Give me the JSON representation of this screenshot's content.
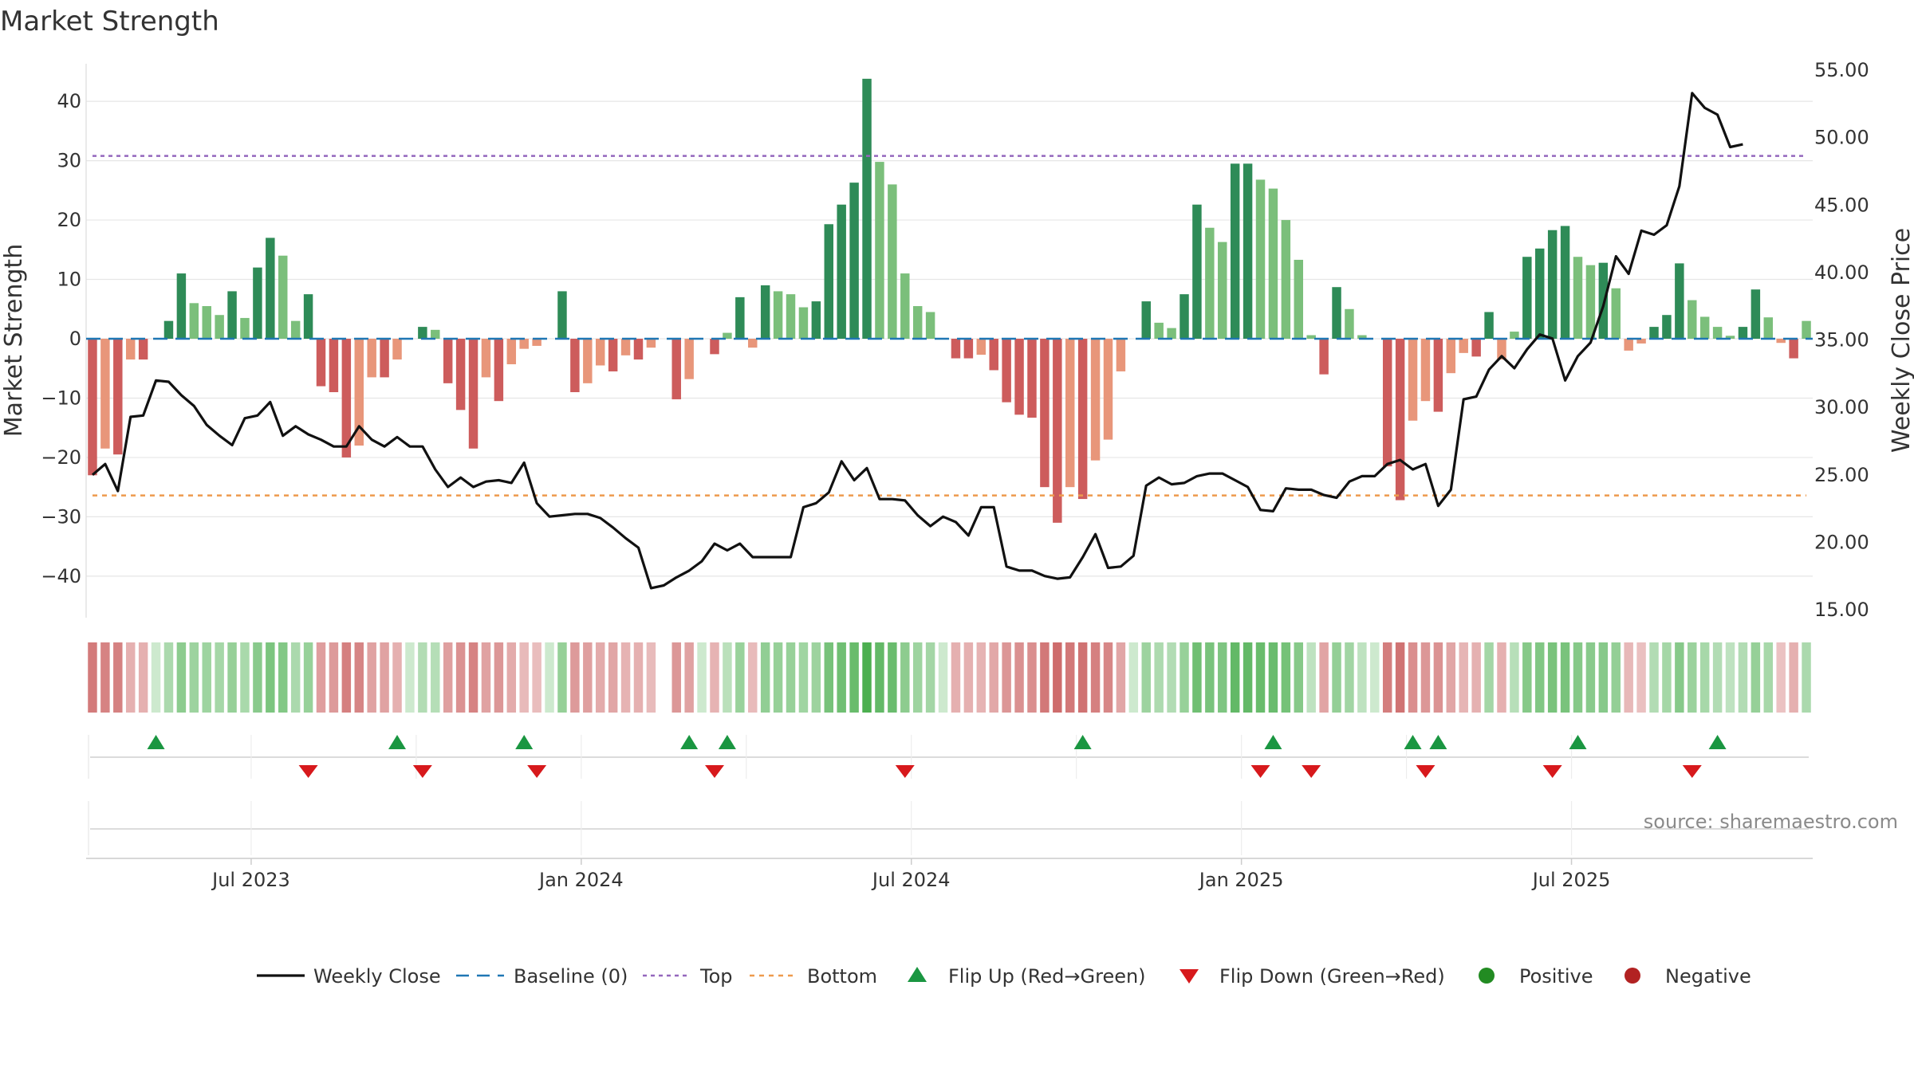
{
  "chart_data": {
    "type": "bar",
    "title": "Market Strength",
    "y_left_label": "Market Strength",
    "y_right_label": "Weekly Close Price",
    "y_left_range": [
      -47,
      47
    ],
    "y_right_range": [
      15,
      55
    ],
    "y_left_ticks": [
      40,
      30,
      20,
      10,
      0,
      -10,
      -20,
      -30,
      -40
    ],
    "y_left_tick_labels": [
      "40",
      "30",
      "20",
      "10",
      "0",
      "−10",
      "−20",
      "−30",
      "−40"
    ],
    "y_right_ticks": [
      55,
      50,
      45,
      40,
      35,
      30,
      25,
      20,
      15
    ],
    "y_right_tick_labels": [
      "55.00",
      "50.00",
      "45.00",
      "40.00",
      "35.00",
      "30.00",
      "25.00",
      "20.00",
      "15.00"
    ],
    "x_tick_weeks": [
      13,
      39,
      65,
      91,
      117
    ],
    "x_tick_labels": [
      "Jul 2023",
      "Jan 2024",
      "Jul 2024",
      "Jan 2025",
      "Jul 2025"
    ],
    "top_level": 30.8,
    "bottom_level": -26.4,
    "strength": [
      -23,
      -18.5,
      -19.5,
      -3.5,
      -3.5,
      0,
      3,
      11,
      6,
      5.5,
      4,
      8,
      3.5,
      12,
      17,
      14,
      3,
      7.5,
      -8,
      -9,
      -20,
      -18,
      -6.5,
      -6.5,
      -3.5,
      0,
      2,
      1.5,
      -7.5,
      -12,
      -18.5,
      -6.5,
      -10.5,
      -4.3,
      -1.7,
      -1.2,
      0,
      8,
      -9,
      -7.5,
      -4.5,
      -5.5,
      -2.8,
      -3.5,
      -1.5,
      0,
      -10.2,
      -6.8,
      0,
      -2.6,
      1,
      7,
      -1.5,
      9,
      8,
      7.5,
      5.3,
      6.3,
      19.3,
      22.6,
      26.3,
      43.8,
      29.8,
      26,
      11,
      5.5,
      4.5,
      0,
      -3.3,
      -3.3,
      -2.7,
      -5.3,
      -10.7,
      -12.8,
      -13.3,
      -25,
      -31,
      -25,
      -27,
      -20.5,
      -17,
      -5.5,
      0,
      6.3,
      2.7,
      1.8,
      7.5,
      22.6,
      18.7,
      16.3,
      29.5,
      29.5,
      26.8,
      25.3,
      20,
      13.3,
      0.6,
      -6,
      8.7,
      5,
      0.6,
      0,
      -21.5,
      -27.2,
      -13.8,
      -10.5,
      -12.3,
      -5.8,
      -2.4,
      -3,
      4.5,
      -3.5,
      1.2,
      13.8,
      15.2,
      18.3,
      19,
      13.8,
      12.4,
      12.8,
      8.5,
      -2,
      -0.8,
      2,
      4,
      12.7,
      6.5,
      3.7,
      2,
      0.5,
      2,
      8.3,
      3.6,
      -0.7,
      -3.3,
      3
    ],
    "weekly_close": [
      25,
      25.8,
      23.8,
      29.3,
      29.4,
      32,
      31.9,
      30.9,
      30.1,
      28.7,
      27.9,
      27.2,
      29.2,
      29.4,
      30.4,
      27.9,
      28.6,
      28,
      27.6,
      27.1,
      27.1,
      28.6,
      27.6,
      27.1,
      27.8,
      27.1,
      27.1,
      25.4,
      24.1,
      24.8,
      24.1,
      24.5,
      24.6,
      24.4,
      25.9,
      22.9,
      21.9,
      22,
      22.1,
      22.1,
      21.8,
      21.1,
      20.3,
      19.6,
      16.6,
      16.8,
      17.4,
      17.9,
      18.6,
      19.9,
      19.4,
      19.9,
      18.9,
      18.9,
      18.9,
      18.9,
      22.6,
      22.9,
      23.7,
      26,
      24.6,
      25.5,
      23.2,
      23.2,
      23.1,
      22,
      21.2,
      21.9,
      21.5,
      20.5,
      22.6,
      22.6,
      18.2,
      17.9,
      17.9,
      17.5,
      17.3,
      17.4,
      18.9,
      20.6,
      18.1,
      18.2,
      19,
      24.2,
      24.8,
      24.3,
      24.4,
      24.9,
      25.1,
      25.1,
      24.6,
      24.1,
      22.4,
      22.3,
      24,
      23.9,
      23.9,
      23.5,
      23.3,
      24.5,
      24.9,
      24.9,
      25.8,
      26.1,
      25.4,
      25.8,
      22.7,
      23.9,
      30.6,
      30.8,
      32.8,
      33.8,
      32.9,
      34.3,
      35.4,
      35.1,
      32,
      33.8,
      34.8,
      37.5,
      41.2,
      39.9,
      43.1,
      42.8,
      43.5,
      46.4,
      53.3,
      52.2,
      51.7,
      49.3,
      49.5
    ],
    "heat_gap_weeks": [
      45
    ],
    "flip_up_weeks": [
      5,
      24,
      34,
      47,
      50,
      78,
      93,
      104,
      106,
      117,
      128
    ],
    "flip_down_weeks": [
      17,
      26,
      35,
      49,
      64,
      92,
      96,
      105,
      115,
      126
    ],
    "colors": {
      "strong_green": "#2e8b57",
      "light_green": "#7bbf7b",
      "strong_red": "#cd5c5c",
      "light_red": "#e8967a",
      "close_line": "#111111",
      "baseline": "#1f77b4",
      "top_line": "#9467bd",
      "bottom_line": "#ee9a4d",
      "flip_up": "#1a9641",
      "flip_down": "#d7191c",
      "positive": "#228b22",
      "negative": "#b22222",
      "grid": "#e6e6e6"
    }
  },
  "source_text": "source: sharemaestro.com",
  "legend": [
    {
      "key": "weekly_close",
      "label": "Weekly Close"
    },
    {
      "key": "baseline",
      "label": "Baseline (0)"
    },
    {
      "key": "top",
      "label": "Top"
    },
    {
      "key": "bottom",
      "label": "Bottom"
    },
    {
      "key": "flip_up",
      "label": "Flip Up (Red→Green)"
    },
    {
      "key": "flip_down",
      "label": "Flip Down (Green→Red)"
    },
    {
      "key": "positive",
      "label": "Positive"
    },
    {
      "key": "negative",
      "label": "Negative"
    }
  ]
}
